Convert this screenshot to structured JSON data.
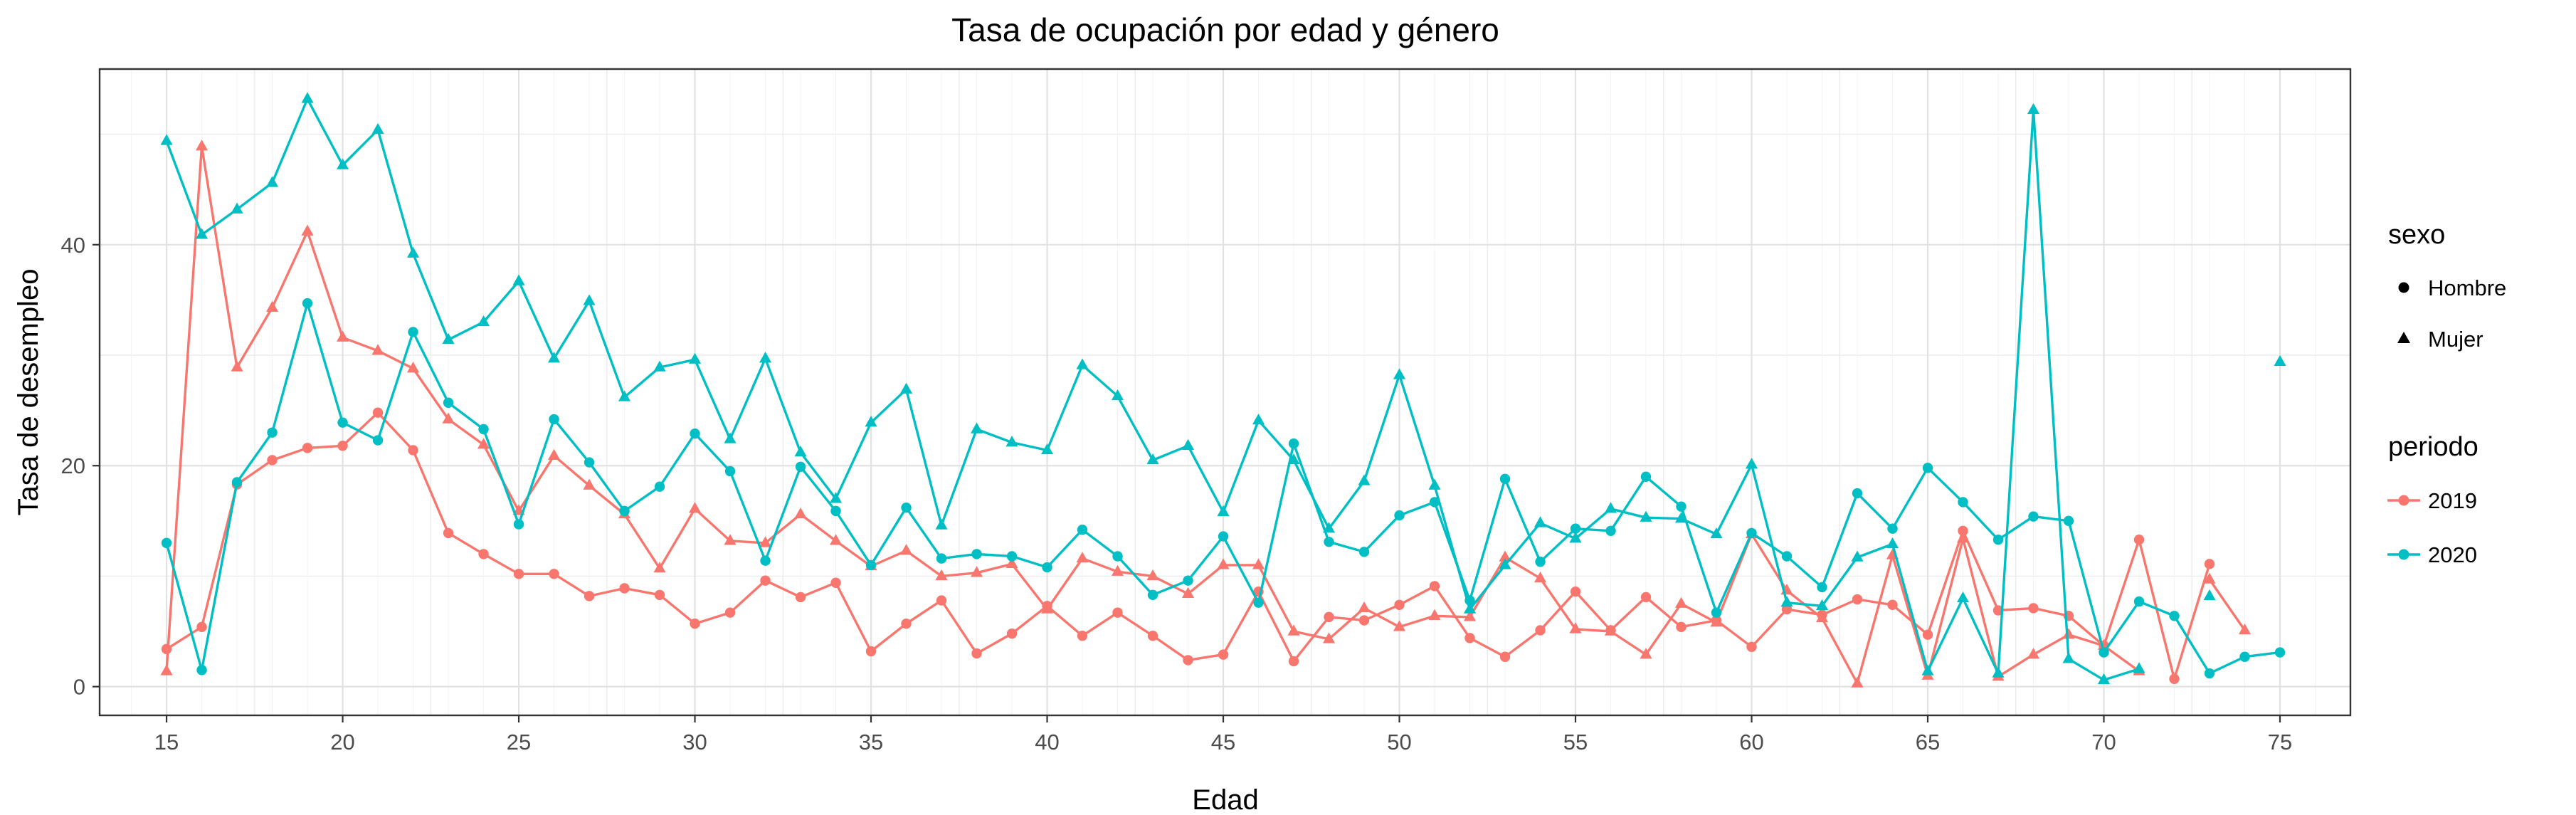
{
  "chart_data": {
    "type": "line",
    "title": "Tasa de ocupación por edad y género",
    "xlabel": "Edad",
    "ylabel": "Tasa de desempleo",
    "xlim": [
      13.1,
      77.0
    ],
    "ylim": [
      -2.6,
      55.9
    ],
    "x_ticks": [
      15,
      20,
      25,
      30,
      35,
      40,
      45,
      50,
      55,
      60,
      65,
      70,
      75
    ],
    "y_ticks": [
      0,
      20,
      40
    ],
    "grid": true,
    "colors": {
      "2019": "#F8766D",
      "2020": "#00BFC4"
    },
    "legend": {
      "placement": "right",
      "shape_title": "sexo",
      "shape_entries": [
        "Hombre",
        "Mujer"
      ],
      "color_title": "periodo",
      "color_entries": [
        "2019",
        "2020"
      ]
    },
    "series": [
      {
        "periodo": "2019",
        "sexo": "Hombre",
        "marker": "circle",
        "x": [
          15,
          16,
          17,
          18,
          19,
          20,
          21,
          22,
          23,
          24,
          25,
          26,
          27,
          28,
          29,
          30,
          31,
          32,
          33,
          34,
          35,
          36,
          37,
          38,
          39,
          40,
          41,
          42,
          43,
          44,
          45,
          46,
          47,
          48,
          49,
          50,
          51,
          52,
          53,
          54,
          55,
          56,
          57,
          58,
          59,
          60,
          61,
          62,
          63,
          64,
          65,
          66,
          67,
          68,
          69,
          70,
          71,
          72,
          73
        ],
        "y": [
          3.4,
          5.4,
          18.3,
          20.5,
          21.6,
          21.8,
          24.8,
          21.4,
          13.9,
          12.0,
          10.2,
          10.2,
          8.2,
          8.9,
          8.3,
          5.7,
          6.7,
          9.6,
          8.1,
          9.4,
          3.2,
          5.7,
          7.8,
          3.0,
          4.8,
          7.3,
          4.6,
          6.7,
          4.6,
          2.4,
          2.9,
          8.6,
          2.3,
          6.3,
          6.0,
          7.4,
          9.1,
          4.4,
          2.7,
          5.1,
          8.6,
          5.1,
          8.1,
          5.4,
          6.0,
          3.6,
          7.0,
          6.5,
          7.9,
          7.4,
          4.7,
          14.1,
          6.9,
          7.1,
          6.4,
          3.7,
          13.3,
          0.7,
          11.1
        ]
      },
      {
        "periodo": "2019",
        "sexo": "Mujer",
        "marker": "triangle",
        "x": [
          15,
          16,
          17,
          18,
          19,
          20,
          21,
          22,
          23,
          24,
          25,
          26,
          27,
          28,
          29,
          30,
          31,
          32,
          33,
          34,
          35,
          36,
          37,
          38,
          39,
          40,
          41,
          42,
          43,
          44,
          45,
          46,
          47,
          48,
          49,
          50,
          51,
          52,
          53,
          54,
          55,
          56,
          57,
          58,
          59,
          60,
          61,
          62,
          63,
          64,
          65,
          66,
          67,
          68,
          69,
          70,
          71,
          72,
          73,
          74
        ],
        "y": [
          1.4,
          48.9,
          28.9,
          34.3,
          41.2,
          31.6,
          30.4,
          28.8,
          24.2,
          21.9,
          15.9,
          20.9,
          18.2,
          15.6,
          10.7,
          16.1,
          13.2,
          13.0,
          15.6,
          13.2,
          10.9,
          12.3,
          10.0,
          10.3,
          11.1,
          7.0,
          11.6,
          10.4,
          10.0,
          8.4,
          11.0,
          11.0,
          5.0,
          4.3,
          7.1,
          5.4,
          6.4,
          6.3,
          11.7,
          9.8,
          5.2,
          5.0,
          2.9,
          7.5,
          5.8,
          13.8,
          8.7,
          6.2,
          0.3,
          11.9,
          1.0,
          13.4,
          0.9,
          2.9,
          4.7,
          3.7,
          1.4,
          null,
          9.7,
          5.1
        ]
      },
      {
        "periodo": "2020",
        "sexo": "Hombre",
        "marker": "circle",
        "x": [
          15,
          16,
          17,
          18,
          19,
          20,
          21,
          22,
          23,
          24,
          25,
          26,
          27,
          28,
          29,
          30,
          31,
          32,
          33,
          34,
          35,
          36,
          37,
          38,
          39,
          40,
          41,
          42,
          43,
          44,
          45,
          46,
          47,
          48,
          49,
          50,
          51,
          52,
          53,
          54,
          55,
          56,
          57,
          58,
          59,
          60,
          61,
          62,
          63,
          64,
          65,
          66,
          67,
          68,
          69,
          70,
          71,
          72,
          73,
          74,
          75
        ],
        "y": [
          13.0,
          1.5,
          18.5,
          23.0,
          34.7,
          23.9,
          22.3,
          32.1,
          25.7,
          23.3,
          14.7,
          24.2,
          20.3,
          15.9,
          18.1,
          22.9,
          19.5,
          11.4,
          19.9,
          15.9,
          11.0,
          16.2,
          11.6,
          12.0,
          11.8,
          10.8,
          14.2,
          11.8,
          8.3,
          9.6,
          13.6,
          7.6,
          22.0,
          13.1,
          12.2,
          15.5,
          16.7,
          7.8,
          18.8,
          11.3,
          14.3,
          14.1,
          19.0,
          16.3,
          6.7,
          13.9,
          11.8,
          9.0,
          17.5,
          14.3,
          19.8,
          16.7,
          13.3,
          15.4,
          15.0,
          3.1,
          7.7,
          6.4,
          1.2,
          2.7,
          3.1
        ]
      },
      {
        "periodo": "2020",
        "sexo": "Mujer",
        "marker": "triangle",
        "x": [
          15,
          16,
          17,
          18,
          19,
          20,
          21,
          22,
          23,
          24,
          25,
          26,
          27,
          28,
          29,
          30,
          31,
          32,
          33,
          34,
          35,
          36,
          37,
          38,
          39,
          40,
          41,
          42,
          43,
          44,
          45,
          46,
          47,
          48,
          49,
          50,
          51,
          52,
          53,
          54,
          55,
          56,
          57,
          58,
          59,
          60,
          61,
          62,
          63,
          64,
          65,
          66,
          67,
          68,
          69,
          70,
          71,
          72,
          73,
          74,
          75
        ],
        "y": [
          49.4,
          40.9,
          43.2,
          45.6,
          53.2,
          47.2,
          50.4,
          39.2,
          31.4,
          33.0,
          36.7,
          29.7,
          34.9,
          26.2,
          28.9,
          29.6,
          22.4,
          29.7,
          21.2,
          17.0,
          23.9,
          26.9,
          14.6,
          23.3,
          22.1,
          21.4,
          29.1,
          26.3,
          20.5,
          21.8,
          15.8,
          24.1,
          20.5,
          14.3,
          18.6,
          28.2,
          18.2,
          7.0,
          11.0,
          14.8,
          13.4,
          16.1,
          15.3,
          15.2,
          13.8,
          20.1,
          7.6,
          7.3,
          11.7,
          12.9,
          1.4,
          8.0,
          1.2,
          52.2,
          2.5,
          0.6,
          1.6,
          null,
          8.2,
          null,
          29.4
        ]
      }
    ]
  }
}
